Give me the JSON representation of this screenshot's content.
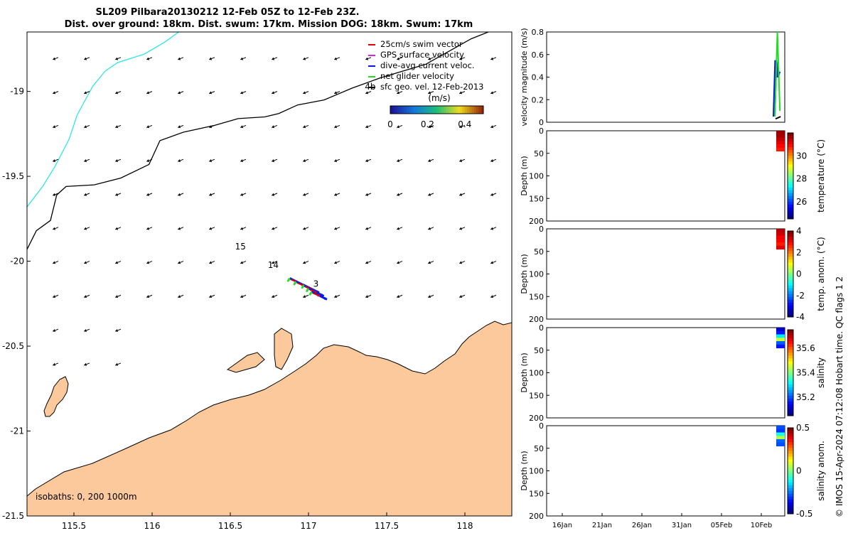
{
  "title": {
    "line1": "SL209 Pilbara20130212 12-Feb 05Z to 12-Feb 23Z.",
    "line2": "Dist. over ground: 18km. Dist. swum: 17km. Mission DOG: 18km. Swum: 17km"
  },
  "colors": {
    "land": "#fbc99b",
    "coast_track": "#2ee6e6",
    "isobath": "#000000",
    "dive_avg": "#0a18e6",
    "net_glider": "#22dd22",
    "gps_surface": "#dd22dd",
    "swim_vector": "#e00000"
  },
  "chart_data": [
    {
      "type": "scatter",
      "name": "map",
      "xlim": [
        115.2,
        118.3
      ],
      "ylim": [
        -21.5,
        -18.65
      ],
      "xticks": [
        "115.5",
        "116",
        "116.5",
        "117",
        "117.5",
        "118"
      ],
      "yticks": [
        "-19",
        "-19.5",
        "-20",
        "-20.5",
        "-21",
        "-21.5"
      ],
      "legend": [
        {
          "label": "25cm/s swim vector",
          "color": "#e00000"
        },
        {
          "label": "GPS surface velocity",
          "color": "#dd22dd"
        },
        {
          "label": "dive-avg current veloc.",
          "color": "#0a18e6"
        },
        {
          "label": "net glider velocity",
          "color": "#22dd22"
        },
        {
          "label": "sfc geo. vel. 12-Feb-2013",
          "color": "#000000"
        }
      ],
      "colorbar": {
        "label": "(m/s)",
        "ticks": [
          "0",
          "0.2",
          "0.4"
        ],
        "range": [
          0,
          0.5
        ]
      },
      "annotations": [
        {
          "text": "4b",
          "lon": 117.36,
          "lat": -18.99
        },
        {
          "text": "15",
          "lon": 116.53,
          "lat": -19.93
        },
        {
          "text": "14",
          "lon": 116.74,
          "lat": -20.04
        },
        {
          "text": "3",
          "lon": 117.03,
          "lat": -20.15
        }
      ],
      "isobath_note": "isobaths: 0, 200  1000m",
      "isobath_200": [
        [
          115.2,
          -19.93
        ],
        [
          115.26,
          -19.82
        ],
        [
          115.35,
          -19.76
        ],
        [
          115.39,
          -19.61
        ],
        [
          115.45,
          -19.56
        ],
        [
          115.63,
          -19.55
        ],
        [
          115.8,
          -19.51
        ],
        [
          115.98,
          -19.43
        ],
        [
          116.05,
          -19.29
        ],
        [
          116.2,
          -19.24
        ],
        [
          116.4,
          -19.2
        ],
        [
          116.55,
          -19.16
        ],
        [
          116.72,
          -19.15
        ],
        [
          116.81,
          -19.13
        ],
        [
          116.93,
          -19.08
        ],
        [
          117.1,
          -19.05
        ],
        [
          117.28,
          -18.98
        ],
        [
          117.46,
          -18.92
        ],
        [
          117.75,
          -18.84
        ],
        [
          118.04,
          -18.69
        ],
        [
          118.15,
          -18.65
        ]
      ],
      "isobath_1000": [
        [
          115.2,
          -19.68
        ],
        [
          115.3,
          -19.56
        ],
        [
          115.38,
          -19.44
        ],
        [
          115.47,
          -19.28
        ],
        [
          115.52,
          -19.14
        ],
        [
          115.62,
          -18.97
        ],
        [
          115.7,
          -18.88
        ],
        [
          115.78,
          -18.83
        ],
        [
          115.95,
          -18.78
        ],
        [
          116.08,
          -18.71
        ],
        [
          116.17,
          -18.65
        ]
      ],
      "sfc_velocity": {
        "lons": [
          115.4,
          115.6,
          115.8,
          116.0,
          116.2,
          116.4,
          116.6,
          116.8,
          117.0,
          117.2,
          117.4,
          117.6,
          117.8,
          118.0,
          118.2
        ],
        "lats": [
          -18.8,
          -19.0,
          -19.2,
          -19.4,
          -19.6,
          -19.8,
          -20.0,
          -20.2,
          -20.4,
          -20.6,
          -20.8,
          -21.0
        ],
        "u": -0.13,
        "v": -0.05
      },
      "glider_vectors": {
        "lon": [
          116.88,
          116.92,
          116.97,
          117.0,
          117.02
        ],
        "lat": [
          -20.1,
          -20.12,
          -20.14,
          -20.16,
          -20.18
        ],
        "dive_avg_u": 0.18,
        "dive_avg_v": -0.09,
        "net_u": -0.05,
        "net_v": -0.08
      }
    },
    {
      "type": "line",
      "name": "velocity magnitude",
      "ylabel": "velocity magnitude (m/s)",
      "ylim": [
        0,
        0.8
      ],
      "yticks": [
        "0",
        "0.2",
        "0.4",
        "0.6",
        "0.8"
      ],
      "series": [
        {
          "name": "dive-avg current",
          "x": [
            0,
            0.3,
            0.6,
            0.9
          ],
          "values": [
            0.05,
            0.55,
            0.4,
            0.45
          ]
        },
        {
          "name": "net glider",
          "x": [
            0,
            0.45,
            0.9
          ],
          "values": [
            0.05,
            0.8,
            0.1
          ]
        },
        {
          "name": "sfc geo",
          "x": [
            0,
            0.9
          ],
          "values": [
            0.03,
            0.05
          ]
        }
      ]
    },
    {
      "type": "heatmap",
      "name": "temperature",
      "ylabel": "Depth (m)",
      "clabel": "temperature (°C)",
      "ylim": [
        0,
        200
      ],
      "yticks": [
        "0",
        "50",
        "100",
        "150",
        "200"
      ],
      "cticks": [
        "26",
        "28",
        "30"
      ],
      "crange": [
        24.5,
        32
      ],
      "depth_max": 45,
      "values": [
        31.5,
        31.3,
        30.8,
        30.2,
        29.6,
        29.2
      ]
    },
    {
      "type": "heatmap",
      "name": "temp. anom.",
      "ylabel": "Depth (m)",
      "clabel": "temp. anom. (°C)",
      "ylim": [
        0,
        200
      ],
      "yticks": [
        "0",
        "50",
        "100",
        "150",
        "200"
      ],
      "cticks": [
        "-4",
        "-2",
        "0",
        "2",
        "4"
      ],
      "crange": [
        -4,
        4
      ],
      "depth_max": 45,
      "values": [
        3.6,
        3.4,
        3.1,
        3.0,
        2.8,
        3.2
      ]
    },
    {
      "type": "heatmap",
      "name": "salinity",
      "ylabel": "Depth (m)",
      "clabel": "salinity",
      "ylim": [
        0,
        200
      ],
      "yticks": [
        "0",
        "50",
        "100",
        "150",
        "200"
      ],
      "cticks": [
        "35.2",
        "35.4",
        "35.6"
      ],
      "crange": [
        35.05,
        35.75
      ],
      "depth_max": 45,
      "values": [
        35.1,
        35.15,
        35.3,
        35.45,
        35.2,
        35.15
      ]
    },
    {
      "type": "heatmap",
      "name": "salinity anom.",
      "ylabel": "Depth (m)",
      "clabel": "salinity anom.",
      "ylim": [
        0,
        200
      ],
      "yticks": [
        "0",
        "50",
        "100",
        "150",
        "200"
      ],
      "cticks": [
        "-0.5",
        "0",
        "0.5"
      ],
      "crange": [
        -0.5,
        0.5
      ],
      "depth_max": 45,
      "values": [
        -0.3,
        -0.32,
        -0.1,
        0.05,
        -0.28,
        -0.3
      ],
      "xticks": [
        "16Jan",
        "21Jan",
        "26Jan",
        "31Jan",
        "05Feb",
        "10Feb"
      ]
    }
  ],
  "credit": "© IMOS 15-Apr-2024 07:12:08 Hobart time. QC flags 1  2"
}
